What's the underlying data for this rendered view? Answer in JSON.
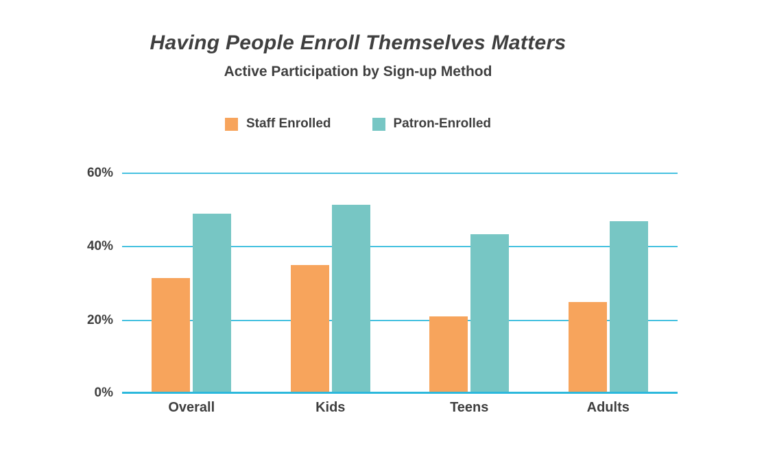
{
  "chart_data": {
    "type": "bar",
    "title": "Having People Enroll Themselves Matters",
    "subtitle": "Active Participation by Sign-up Method",
    "categories": [
      "Overall",
      "Kids",
      "Teens",
      "Adults"
    ],
    "series": [
      {
        "name": "Staff Enrolled",
        "color": "#F7A45C",
        "values": [
          31.5,
          35,
          21,
          25
        ]
      },
      {
        "name": "Patron-Enrolled",
        "color": "#77C6C4",
        "values": [
          49,
          51.5,
          43.5,
          47
        ]
      }
    ],
    "xlabel": "",
    "ylabel": "",
    "ylim": [
      0,
      60
    ],
    "yticks": [
      {
        "value": 0,
        "label": "0%"
      },
      {
        "value": 20,
        "label": "20%"
      },
      {
        "value": 40,
        "label": "40%"
      },
      {
        "value": 60,
        "label": "60%"
      }
    ],
    "grid": true,
    "legend_position": "top-center",
    "colors": {
      "text": "#3F3F3F",
      "gridline": "#45C1E0",
      "baseline": "#2BB8DC",
      "background": "#FFFFFF"
    }
  }
}
